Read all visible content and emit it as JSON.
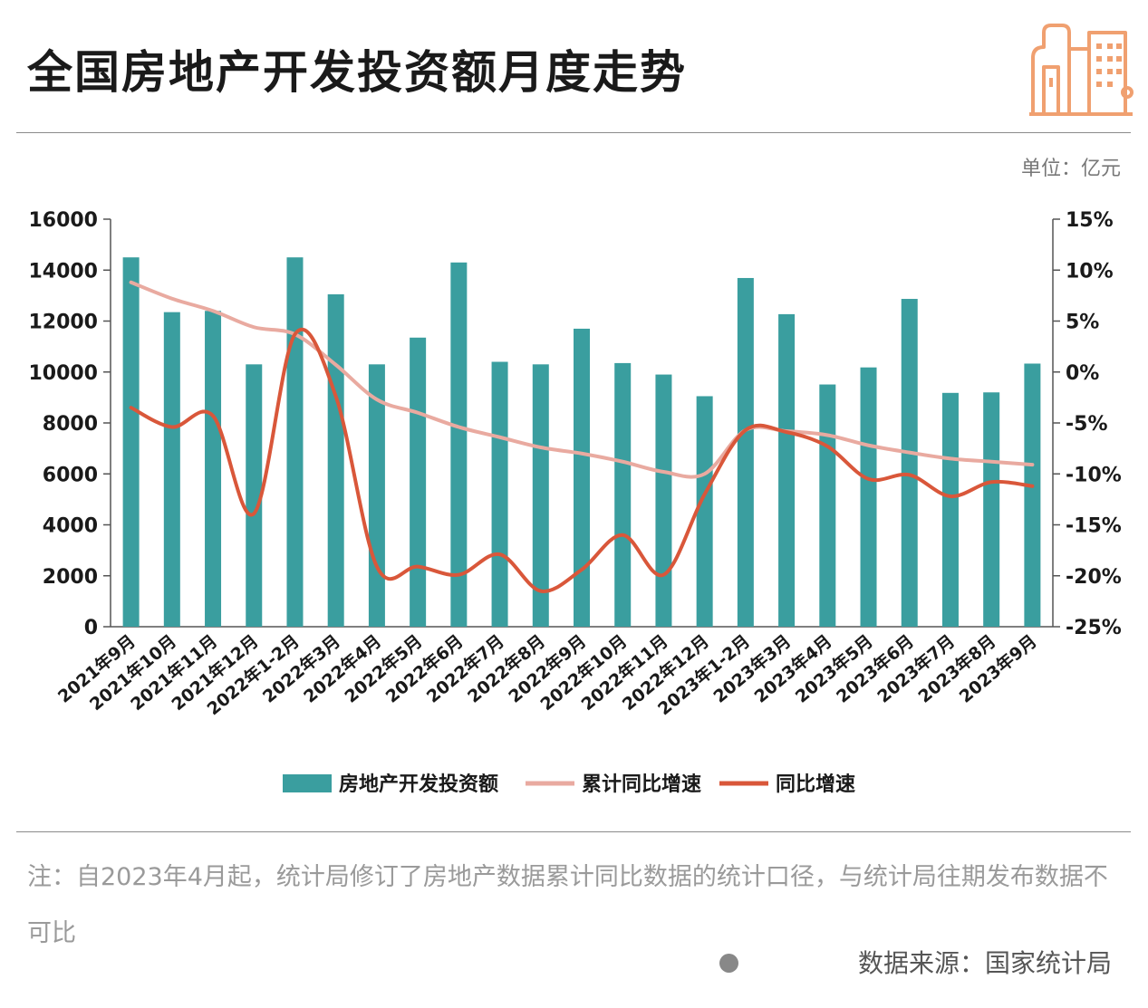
{
  "header": {
    "title": "全国房地产开发投资额月度走势",
    "unit": "单位：亿元"
  },
  "colors": {
    "bar": "#3a9e9f",
    "cumulative_line": "#e9aaa0",
    "yoy_line": "#d9573a",
    "axis": "#555555",
    "logo": "#f0a070"
  },
  "icons": {
    "logo": "building-logo-icon"
  },
  "chart_data": {
    "type": "bar",
    "categories": [
      "2021年9月",
      "2021年10月",
      "2021年11月",
      "2021年12月",
      "2022年1-2月",
      "2022年3月",
      "2022年4月",
      "2022年5月",
      "2022年6月",
      "2022年7月",
      "2022年8月",
      "2022年9月",
      "2022年10月",
      "2022年11月",
      "2022年12月",
      "2023年1-2月",
      "2023年3月",
      "2023年4月",
      "2023年5月",
      "2023年6月",
      "2023年7月",
      "2023年8月",
      "2023年9月"
    ],
    "y_left": {
      "min": 0,
      "max": 16000,
      "ticks": [
        "0",
        "2000",
        "4000",
        "6000",
        "8000",
        "10000",
        "12000",
        "14000",
        "16000"
      ]
    },
    "y_right": {
      "min": -25,
      "max": 15,
      "ticks": [
        "-25%",
        "-20%",
        "-15%",
        "-10%",
        "-5%",
        "0%",
        "5%",
        "10%",
        "15%"
      ]
    },
    "series": [
      {
        "name": "房地产开发投资额",
        "kind": "bar",
        "axis": "left",
        "values": [
          14500,
          12350,
          12400,
          10300,
          14500,
          13050,
          10300,
          11350,
          14300,
          10400,
          10300,
          11700,
          10350,
          9900,
          9050,
          13690,
          12270,
          9510,
          10180,
          12870,
          9180,
          9200,
          10330
        ]
      },
      {
        "name": "累计同比增速",
        "kind": "line",
        "axis": "right",
        "values": [
          8.8,
          7.2,
          6.0,
          4.4,
          3.7,
          0.7,
          -2.7,
          -4.0,
          -5.4,
          -6.4,
          -7.4,
          -8.0,
          -8.8,
          -9.8,
          -10.0,
          -5.7,
          -5.8,
          -6.2,
          -7.2,
          -7.9,
          -8.5,
          -8.8,
          -9.1
        ]
      },
      {
        "name": "同比增速",
        "kind": "line",
        "axis": "right",
        "values": [
          -3.5,
          -5.4,
          -4.3,
          -13.9,
          3.7,
          -2.4,
          -19.1,
          -19.1,
          -19.9,
          -17.9,
          -21.5,
          -19.4,
          -16.0,
          -19.9,
          -12.0,
          -5.7,
          -5.9,
          -7.3,
          -10.5,
          -10.1,
          -12.2,
          -10.8,
          -11.2
        ]
      }
    ],
    "legend_position": "bottom"
  },
  "footer": {
    "note": "注：自2023年4月起，统计局修订了房地产数据累计同比数据的统计口径，与统计局往期发布数据不可比",
    "source": "数据来源：国家统计局"
  }
}
